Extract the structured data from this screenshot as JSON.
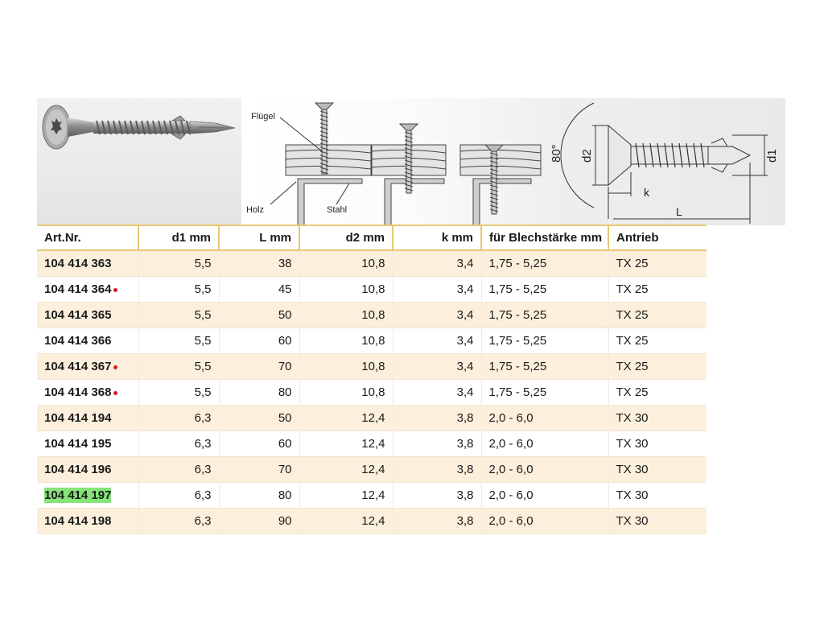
{
  "figure": {
    "label_wing": "Flügel",
    "label_wood": "Holz",
    "label_steel": "Stahl",
    "dim_angle": "80°",
    "dim_d2": "d2",
    "dim_d1": "d1",
    "dim_k": "k",
    "dim_L": "L"
  },
  "table": {
    "headers": [
      "Art.Nr.",
      "d1 mm",
      "L mm",
      "d2 mm",
      "k mm",
      "für Blechstärke mm",
      "Antrieb"
    ],
    "rows": [
      {
        "art": "104 414 363",
        "d1": "5,5",
        "L": "38",
        "d2": "10,8",
        "k": "3,4",
        "blech": "1,75 - 5,25",
        "antrieb": "TX 25"
      },
      {
        "art": "104 414 364",
        "d1": "5,5",
        "L": "45",
        "d2": "10,8",
        "k": "3,4",
        "blech": "1,75 - 5,25",
        "antrieb": "TX 25"
      },
      {
        "art": "104 414 365",
        "d1": "5,5",
        "L": "50",
        "d2": "10,8",
        "k": "3,4",
        "blech": "1,75 - 5,25",
        "antrieb": "TX 25"
      },
      {
        "art": "104 414 366",
        "d1": "5,5",
        "L": "60",
        "d2": "10,8",
        "k": "3,4",
        "blech": "1,75 - 5,25",
        "antrieb": "TX 25"
      },
      {
        "art": "104 414 367",
        "d1": "5,5",
        "L": "70",
        "d2": "10,8",
        "k": "3,4",
        "blech": "1,75 - 5,25",
        "antrieb": "TX 25"
      },
      {
        "art": "104 414 368",
        "d1": "5,5",
        "L": "80",
        "d2": "10,8",
        "k": "3,4",
        "blech": "1,75 - 5,25",
        "antrieb": "TX 25"
      },
      {
        "art": "104 414 194",
        "d1": "6,3",
        "L": "50",
        "d2": "12,4",
        "k": "3,8",
        "blech": "2,0 - 6,0",
        "antrieb": "TX 30"
      },
      {
        "art": "104 414 195",
        "d1": "6,3",
        "L": "60",
        "d2": "12,4",
        "k": "3,8",
        "blech": "2,0 - 6,0",
        "antrieb": "TX 30"
      },
      {
        "art": "104 414 196",
        "d1": "6,3",
        "L": "70",
        "d2": "12,4",
        "k": "3,8",
        "blech": "2,0 - 6,0",
        "antrieb": "TX 30"
      },
      {
        "art": "104 414 197",
        "d1": "6,3",
        "L": "80",
        "d2": "12,4",
        "k": "3,8",
        "blech": "2,0 - 6,0",
        "antrieb": "TX 30"
      },
      {
        "art": "104 414 198",
        "d1": "6,3",
        "L": "90",
        "d2": "12,4",
        "k": "3,8",
        "blech": "2,0 - 6,0",
        "antrieb": "TX 30"
      }
    ]
  },
  "colors": {
    "row_alt": "#fcf0dc",
    "header_rule": "#e8c875",
    "marker_dot": "#d81a1a",
    "highlight": "#86e37a"
  }
}
